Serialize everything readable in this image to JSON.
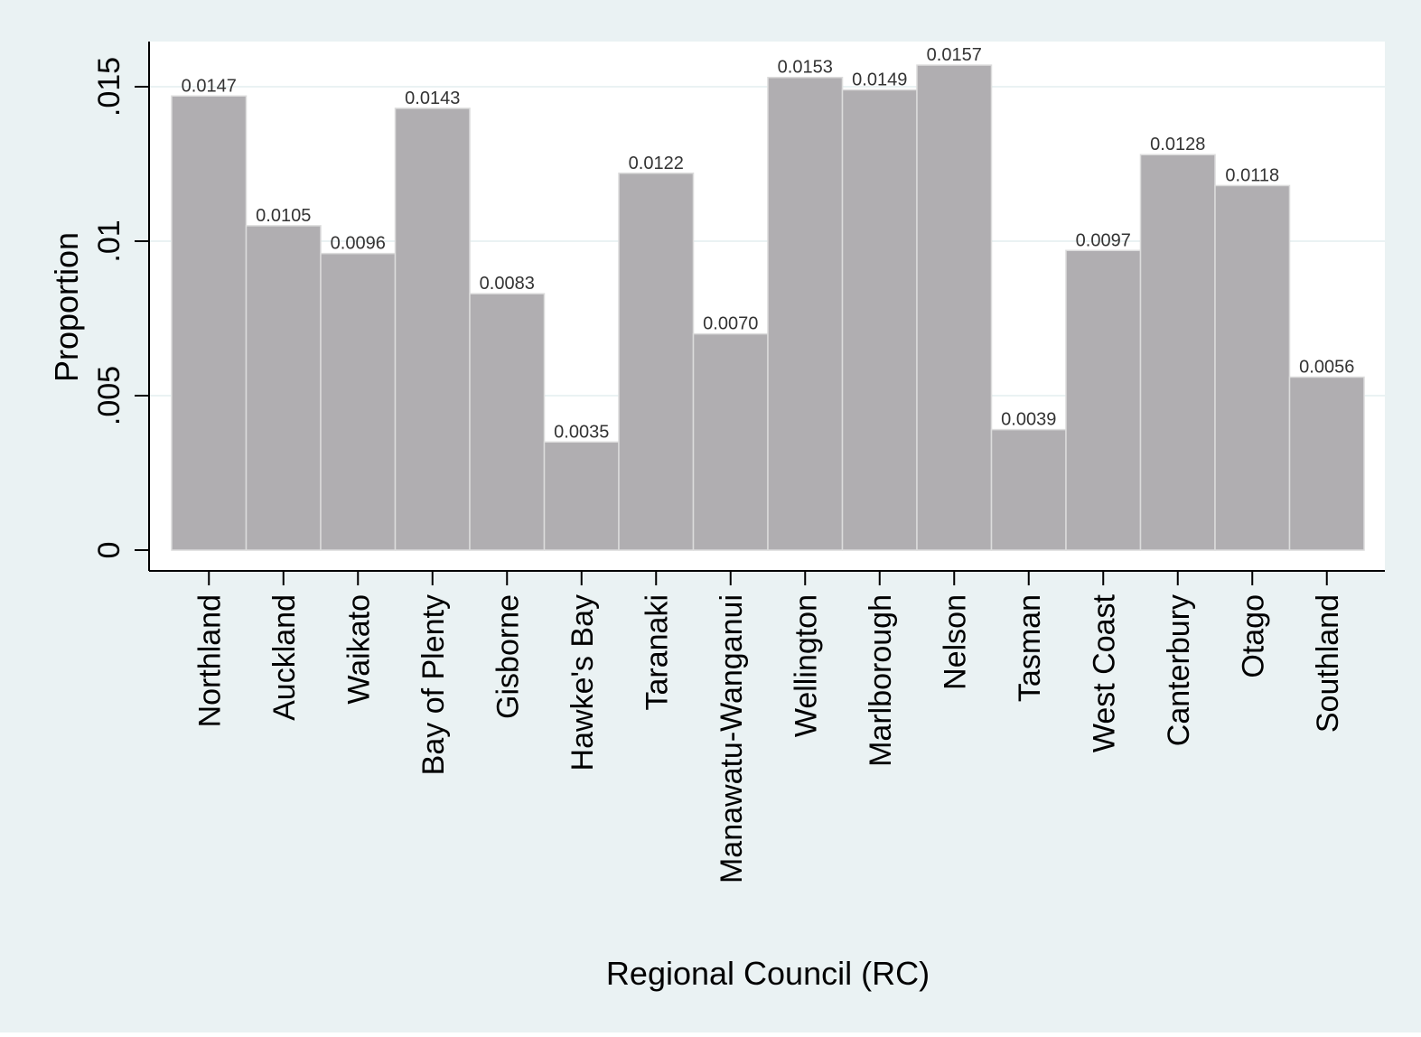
{
  "chart_data": {
    "type": "bar",
    "title": "",
    "xlabel": "Regional Council (RC)",
    "ylabel": "Proportion",
    "categories": [
      "Northland",
      "Auckland",
      "Waikato",
      "Bay of Plenty",
      "Gisborne",
      "Hawke's Bay",
      "Taranaki",
      "Manawatu-Wanganui",
      "Wellington",
      "Marlborough",
      "Nelson",
      "Tasman",
      "West Coast",
      "Canterbury",
      "Otago",
      "Southland"
    ],
    "values": [
      0.0147,
      0.0105,
      0.0096,
      0.0143,
      0.0083,
      0.0035,
      0.0122,
      0.007,
      0.0153,
      0.0149,
      0.0157,
      0.0039,
      0.0097,
      0.0128,
      0.0118,
      0.0056
    ],
    "value_labels": [
      "0.0147",
      "0.0105",
      "0.0096",
      "0.0143",
      "0.0083",
      "0.0035",
      "0.0122",
      "0.0070",
      "0.0153",
      "0.0149",
      "0.0157",
      "0.0039",
      "0.0097",
      "0.0128",
      "0.0118",
      "0.0056"
    ],
    "ylim": [
      0,
      0.0157
    ],
    "y_ticks": [
      0,
      0.005,
      0.01,
      0.015
    ],
    "y_tick_labels": [
      "0",
      ".005",
      ".01",
      ".015"
    ],
    "grid": true,
    "legend": "none",
    "colors": {
      "outer_background": "#eaf2f3",
      "plot_background": "#ffffff",
      "bar_fill": "#b0aeb1",
      "bar_edge": "#dcdcdc",
      "gridline": "#eaf2f3",
      "axis": "#000000",
      "text": "#000000",
      "value_label": "#333333"
    }
  }
}
